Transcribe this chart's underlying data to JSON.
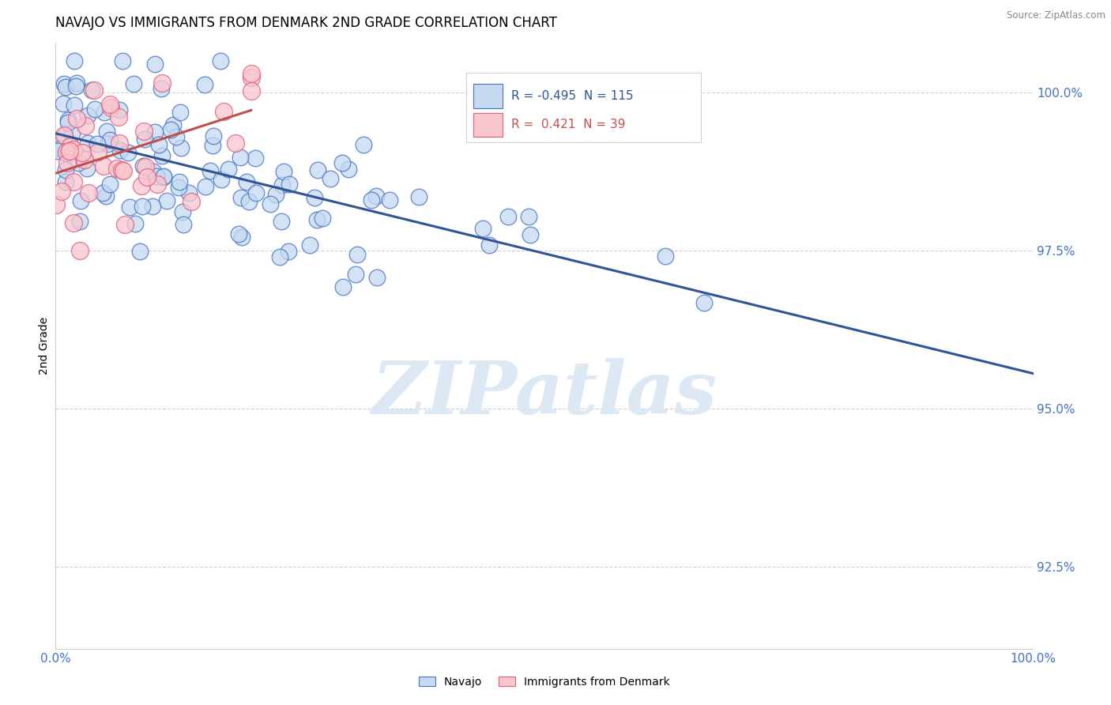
{
  "title": "NAVAJO VS IMMIGRANTS FROM DENMARK 2ND GRADE CORRELATION CHART",
  "source": "Source: ZipAtlas.com",
  "ylabel": "2nd Grade",
  "ytick_labels": [
    "92.5%",
    "95.0%",
    "97.5%",
    "100.0%"
  ],
  "ytick_values": [
    92.5,
    95.0,
    97.5,
    100.0
  ],
  "xmin": 0.0,
  "xmax": 100.0,
  "ymin": 91.2,
  "ymax": 100.8,
  "navajo_color": "#c5d9f1",
  "navajo_edge_color": "#4472c4",
  "denmark_color": "#f9c6ce",
  "denmark_edge_color": "#e05c7a",
  "navajo_R": -0.495,
  "navajo_N": 115,
  "denmark_R": 0.421,
  "denmark_N": 39,
  "navajo_line_color": "#2f5597",
  "denmark_line_color": "#c0504d",
  "axis_label_color": "#4472c4",
  "ytick_color": "#4472c4",
  "grid_color": "#bbbbbb",
  "title_color": "#000000",
  "watermark_text": "ZIPatlas",
  "watermark_color": "#dde8f5"
}
